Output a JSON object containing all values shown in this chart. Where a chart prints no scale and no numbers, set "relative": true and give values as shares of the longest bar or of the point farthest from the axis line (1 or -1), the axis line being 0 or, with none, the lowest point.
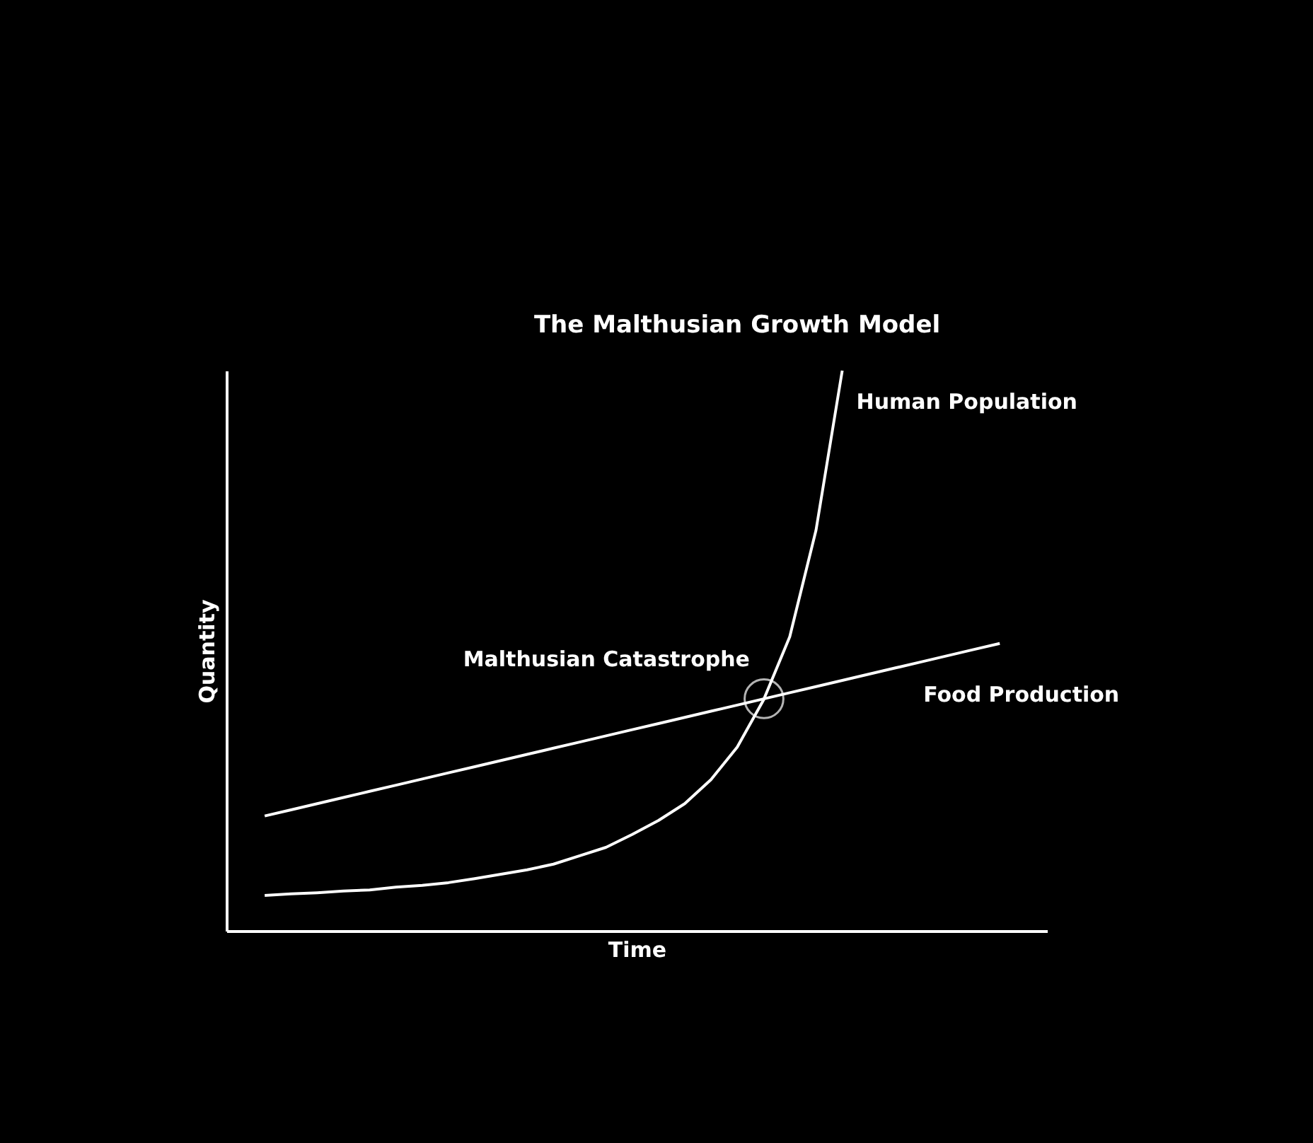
{
  "chart_data": {
    "type": "line",
    "title": "The Malthusian Growth Model",
    "xlabel": "Time",
    "ylabel": "Quantity",
    "relative": true,
    "categories": [
      null,
      null,
      null,
      null,
      null,
      null,
      null,
      null,
      null,
      null,
      null,
      null,
      null,
      null,
      null,
      null,
      null,
      null,
      null,
      null,
      null,
      null,
      null,
      null,
      null,
      null,
      null,
      null,
      null
    ],
    "series": [
      {
        "name": "Human Population",
        "color": "#ffffff",
        "values": [
          0.063,
          0.066,
          0.068,
          0.071,
          0.073,
          0.078,
          0.081,
          0.086,
          0.093,
          0.101,
          0.109,
          0.119,
          0.134,
          0.149,
          0.172,
          0.197,
          0.227,
          0.27,
          0.328,
          0.412,
          0.525,
          0.715,
          1,
          null,
          null,
          null,
          null,
          null,
          null
        ]
      },
      {
        "name": "Food Production",
        "color": "#ffffff",
        "values": [
          0.205,
          0.216,
          0.227,
          0.238,
          0.249,
          0.26,
          0.271,
          0.282,
          0.293,
          0.304,
          0.315,
          0.326,
          0.337,
          0.348,
          0.359,
          0.37,
          0.381,
          0.392,
          0.403,
          0.414,
          0.425,
          0.436,
          0.447,
          0.458,
          0.469,
          0.48,
          0.491,
          0.502,
          0.513
        ]
      }
    ],
    "annotations": [
      "Malthusian Catastrophe"
    ],
    "marker": "none",
    "line_style": "solid"
  }
}
